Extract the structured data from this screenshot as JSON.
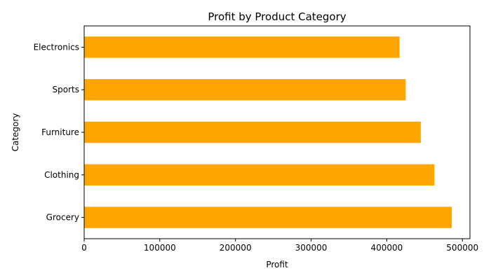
{
  "chart_data": {
    "type": "bar",
    "orientation": "horizontal",
    "title": "Profit by Product Category",
    "xlabel": "Profit",
    "ylabel": "Category",
    "categories": [
      "Grocery",
      "Clothing",
      "Furniture",
      "Sports",
      "Electronics"
    ],
    "values": [
      486000,
      463000,
      445000,
      425000,
      417000
    ],
    "xlim": [
      0,
      510000
    ],
    "xticks": [
      0,
      100000,
      200000,
      300000,
      400000,
      500000
    ],
    "xtick_labels": [
      "0",
      "100000",
      "200000",
      "300000",
      "400000",
      "500000"
    ],
    "grid": false,
    "bar_color": "#FFA500"
  }
}
